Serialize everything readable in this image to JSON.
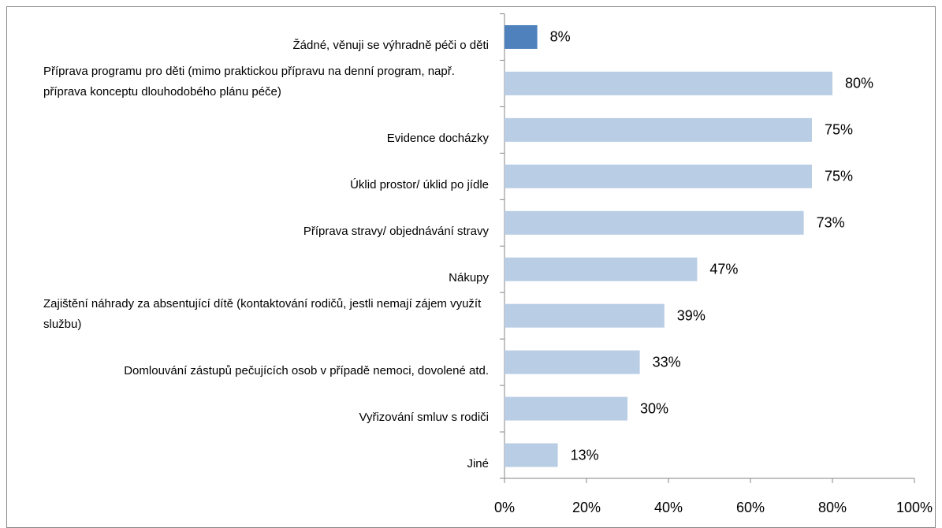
{
  "chart_data": {
    "type": "bar",
    "orientation": "horizontal",
    "categories": [
      "Žádné, věnuji se výhradně péči o děti",
      "Příprava programu pro děti (mimo praktickou přípravu na denní program, např. příprava konceptu dlouhodobého plánu péče)",
      "Evidence docházky",
      "Úklid prostor/ úklid po jídle",
      "Příprava stravy/ objednávání stravy",
      "Nákupy",
      "Zajištění náhrady za absentující dítě (kontaktování rodičů, jestli nemají zájem využít službu)",
      "Domlouvání zástupů pečujících osob v případě nemoci, dovolené atd.",
      "Vyřizování smluv s rodiči",
      "Jiné"
    ],
    "values": [
      8,
      80,
      75,
      75,
      73,
      47,
      39,
      33,
      30,
      13
    ],
    "value_labels": [
      "8%",
      "80%",
      "75%",
      "75%",
      "73%",
      "47%",
      "39%",
      "33%",
      "30%",
      "13%"
    ],
    "colors": [
      "#4f81bd",
      "#b9cde5",
      "#b9cde5",
      "#b9cde5",
      "#b9cde5",
      "#b9cde5",
      "#b9cde5",
      "#b9cde5",
      "#b9cde5",
      "#b9cde5"
    ],
    "xlim": [
      0,
      100
    ],
    "xticks": [
      {
        "value": 0,
        "label": "0%"
      },
      {
        "value": 20,
        "label": "20%"
      },
      {
        "value": 40,
        "label": "40%"
      },
      {
        "value": 60,
        "label": "60%"
      },
      {
        "value": 80,
        "label": "80%"
      },
      {
        "value": 100,
        "label": "100%"
      }
    ],
    "grid": false
  }
}
